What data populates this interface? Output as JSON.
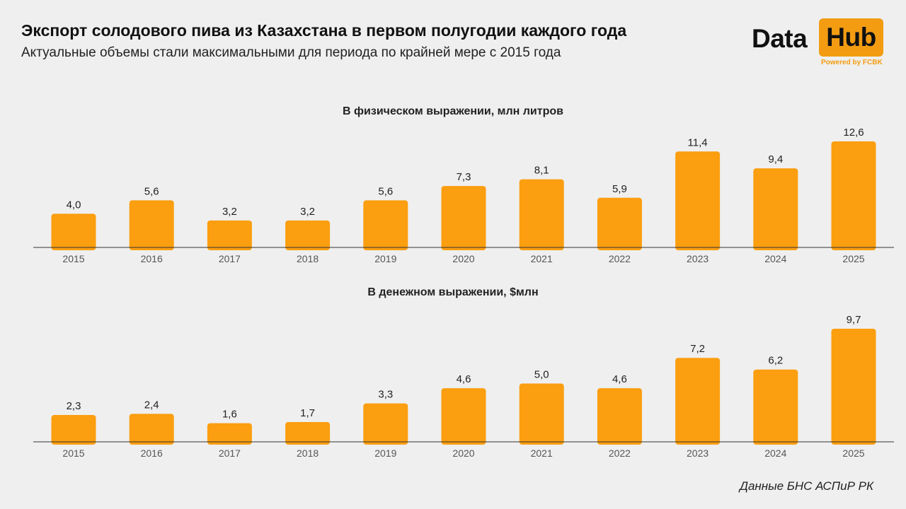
{
  "header": {
    "title": "Экспорт солодового пива из Казахстана в первом полугодии каждого года",
    "subtitle": "Актуальные объемы стали максимальными для периода по крайней мере с 2015 года"
  },
  "logo": {
    "word1": "Data",
    "word2": "Hub",
    "powered": "Powered by FCBK"
  },
  "colors": {
    "bar": "#fb9e0f",
    "axis": "#333333",
    "accent": "#f39c12"
  },
  "chart_data": [
    {
      "type": "bar",
      "title": "В физическом выражении, млн литров",
      "categories": [
        "2015",
        "2016",
        "2017",
        "2018",
        "2019",
        "2020",
        "2021",
        "2022",
        "2023",
        "2024",
        "2025"
      ],
      "values": [
        4.0,
        5.6,
        3.2,
        3.2,
        5.6,
        7.3,
        8.1,
        5.9,
        11.4,
        9.4,
        12.6
      ],
      "value_labels": [
        "4,0",
        "5,6",
        "3,2",
        "3,2",
        "5,6",
        "7,3",
        "8,1",
        "5,9",
        "11,4",
        "9,4",
        "12,6"
      ],
      "ylim": [
        0,
        12.6
      ],
      "grid": false
    },
    {
      "type": "bar",
      "title": "В денежном выражении, $млн",
      "categories": [
        "2015",
        "2016",
        "2017",
        "2018",
        "2019",
        "2020",
        "2021",
        "2022",
        "2023",
        "2024",
        "2025"
      ],
      "values": [
        2.3,
        2.4,
        1.6,
        1.7,
        3.3,
        4.6,
        5.0,
        4.6,
        7.2,
        6.2,
        9.7
      ],
      "value_labels": [
        "2,3",
        "2,4",
        "1,6",
        "1,7",
        "3,3",
        "4,6",
        "5,0",
        "4,6",
        "7,2",
        "6,2",
        "9,7"
      ],
      "ylim": [
        0,
        9.7
      ],
      "grid": false
    }
  ],
  "footer": {
    "source": "Данные БНС АСПиР РК"
  }
}
